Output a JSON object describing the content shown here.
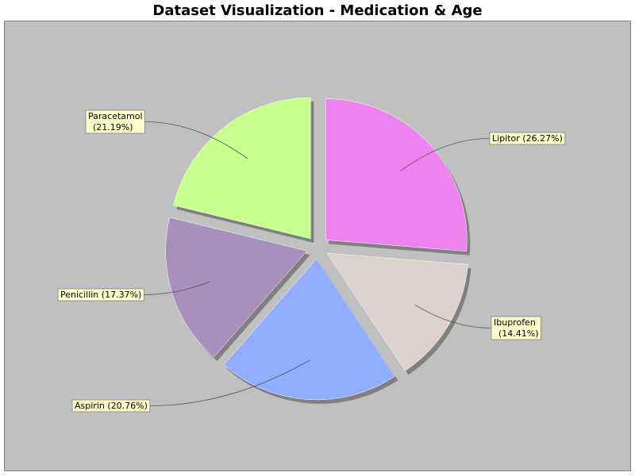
{
  "chart_data": {
    "type": "pie",
    "title": "Dataset Visualization - Medication & Age",
    "slices": [
      {
        "name": "Lipitor",
        "label": "Lipitor (26.27%)",
        "percent": 26.27,
        "color": "#ee82ee"
      },
      {
        "name": "Ibuprofen",
        "label": "Ibuprofen (14.41%)",
        "percent": 14.41,
        "color": "#dbd1cf"
      },
      {
        "name": "Aspirin",
        "label": "Aspirin (20.76%)",
        "percent": 20.76,
        "color": "#91adff"
      },
      {
        "name": "Penicillin",
        "label": "Penicillin (17.37%)",
        "percent": 17.37,
        "color": "#a98fbb"
      },
      {
        "name": "Paracetamol",
        "label": "Paracetamol (21.19%)",
        "percent": 21.19,
        "color": "#c7ff8f"
      }
    ],
    "exploded": true,
    "shadow": true,
    "start_angle_deg": 90,
    "direction": "clockwise",
    "plot_background": "#c0c0c0",
    "label_box_color": "#ffffcc"
  }
}
